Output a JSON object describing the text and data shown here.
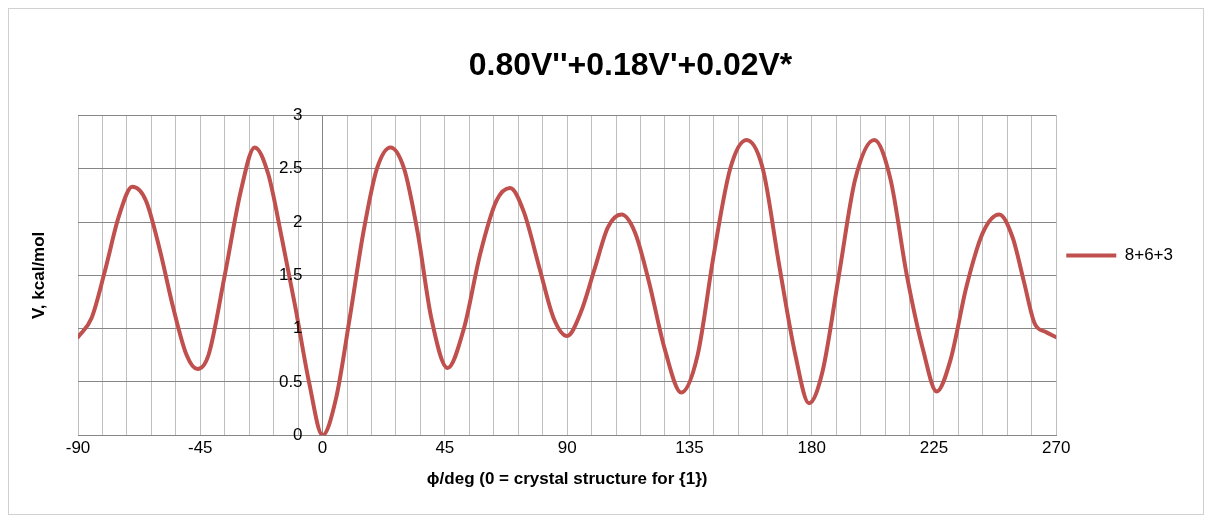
{
  "chart_data": {
    "type": "line",
    "title": "0.80V''+0.18V'+0.02V*",
    "xlabel": "ϕ/deg (0 = crystal structure for {1})",
    "ylabel": "V, kcal/mol",
    "xlim": [
      -90,
      270
    ],
    "xticks": [
      -90,
      {
        "value": -81,
        "label": null
      },
      {
        "value": -72,
        "label": null
      },
      {
        "value": -63,
        "label": null
      },
      {
        "value": -54,
        "label": null
      },
      -45,
      {
        "value": -36,
        "label": null
      },
      {
        "value": -27,
        "label": null
      },
      {
        "value": -18,
        "label": null
      },
      {
        "value": -9,
        "label": null
      },
      0,
      {
        "value": 9,
        "label": null
      },
      {
        "value": 18,
        "label": null
      },
      {
        "value": 27,
        "label": null
      },
      {
        "value": 36,
        "label": null
      },
      45,
      {
        "value": 54,
        "label": null
      },
      {
        "value": 63,
        "label": null
      },
      {
        "value": 72,
        "label": null
      },
      {
        "value": 81,
        "label": null
      },
      90,
      {
        "value": 99,
        "label": null
      },
      {
        "value": 108,
        "label": null
      },
      {
        "value": 117,
        "label": null
      },
      {
        "value": 126,
        "label": null
      },
      135,
      {
        "value": 144,
        "label": null
      },
      {
        "value": 153,
        "label": null
      },
      {
        "value": 162,
        "label": null
      },
      {
        "value": 171,
        "label": null
      },
      180,
      {
        "value": 189,
        "label": null
      },
      {
        "value": 198,
        "label": null
      },
      {
        "value": 207,
        "label": null
      },
      {
        "value": 216,
        "label": null
      },
      225,
      {
        "value": 234,
        "label": null
      },
      {
        "value": 243,
        "label": null
      },
      {
        "value": 252,
        "label": null
      },
      {
        "value": 261,
        "label": null
      },
      270
    ],
    "ylim": [
      0,
      3
    ],
    "yticks": [
      0,
      0.5,
      1,
      1.5,
      2,
      2.5,
      3
    ],
    "grid": true,
    "legend": "right",
    "marker": "none",
    "line_style": "solid",
    "series": [
      {
        "name": "8+6+3",
        "color": "#c0504d",
        "x": [
          -90,
          -85,
          -80,
          -75,
          -70,
          -65,
          -60,
          -55,
          -50,
          -46,
          -42,
          -36,
          -30,
          -25,
          -20,
          -15,
          -10,
          -5,
          0,
          5,
          10,
          15,
          20,
          25,
          30,
          35,
          40,
          46,
          52,
          58,
          64,
          69,
          74,
          80,
          85,
          90,
          95,
          100,
          105,
          110,
          115,
          120,
          126,
          132,
          138,
          144,
          150,
          156,
          162,
          168,
          174,
          179,
          184,
          190,
          196,
          203,
          209,
          215,
          221,
          226,
          231,
          237,
          243,
          249,
          254,
          258,
          262,
          266,
          270
        ],
        "values": [
          0.92,
          1.1,
          1.55,
          2.05,
          2.33,
          2.2,
          1.75,
          1.2,
          0.75,
          0.62,
          0.75,
          1.5,
          2.3,
          2.7,
          2.45,
          1.85,
          1.2,
          0.5,
          0,
          0.35,
          1.1,
          1.9,
          2.5,
          2.7,
          2.5,
          1.9,
          1.1,
          0.63,
          1.0,
          1.7,
          2.2,
          2.32,
          2.1,
          1.55,
          1.1,
          0.93,
          1.15,
          1.55,
          1.95,
          2.07,
          1.9,
          1.45,
          0.8,
          0.4,
          0.75,
          1.7,
          2.5,
          2.77,
          2.5,
          1.6,
          0.75,
          0.3,
          0.6,
          1.5,
          2.4,
          2.77,
          2.4,
          1.5,
          0.8,
          0.41,
          0.7,
          1.4,
          1.9,
          2.07,
          1.85,
          1.45,
          1.05,
          0.97,
          0.92
        ]
      }
    ]
  }
}
